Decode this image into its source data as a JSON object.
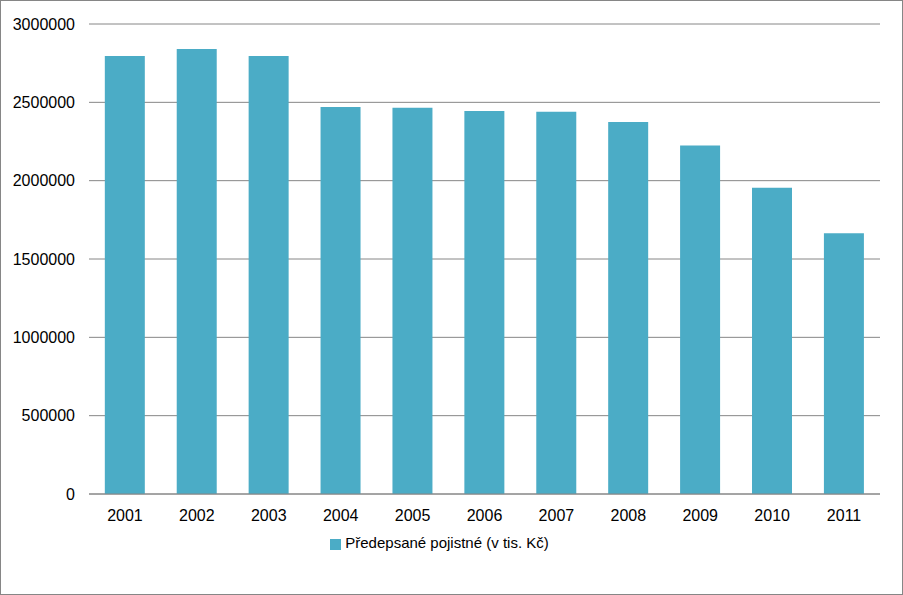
{
  "chart_data": {
    "type": "bar",
    "categories": [
      "2001",
      "2002",
      "2003",
      "2004",
      "2005",
      "2006",
      "2007",
      "2008",
      "2009",
      "2010",
      "2011"
    ],
    "series": [
      {
        "name": "Předepsané pojistné (v tis. Kč)",
        "color": "#4bacc6",
        "values": [
          2795000,
          2840000,
          2795000,
          2470000,
          2465000,
          2445000,
          2440000,
          2375000,
          2225000,
          1955000,
          1665000
        ]
      }
    ],
    "ylim": [
      0,
      3000000
    ],
    "yticks": [
      0,
      500000,
      1000000,
      1500000,
      2000000,
      2500000,
      3000000
    ],
    "grid": true,
    "legend": "bottom"
  }
}
